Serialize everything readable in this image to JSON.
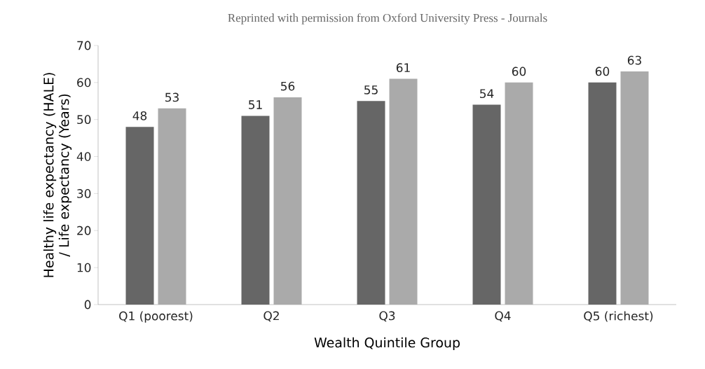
{
  "chart_data": {
    "type": "bar",
    "categories": [
      "Q1 (poorest)",
      "Q2",
      "Q3",
      "Q4",
      "Q5 (richest)"
    ],
    "series": [
      {
        "color": "#666666",
        "values": [
          48,
          51,
          55,
          54,
          60
        ]
      },
      {
        "color": "#aaaaaa",
        "values": [
          53,
          56,
          61,
          60,
          63
        ]
      }
    ],
    "ylim": [
      0,
      70
    ],
    "yticks": [
      0,
      10,
      20,
      30,
      40,
      50,
      60,
      70
    ],
    "xlabel": "Wealth Quintile Group",
    "ylabel": "Healthy life expectancy (HALE) / Life expectancy (Years)",
    "annotations": [
      "Reprinted with permission from Oxford University Press - Journals"
    ],
    "data_labels": true
  }
}
